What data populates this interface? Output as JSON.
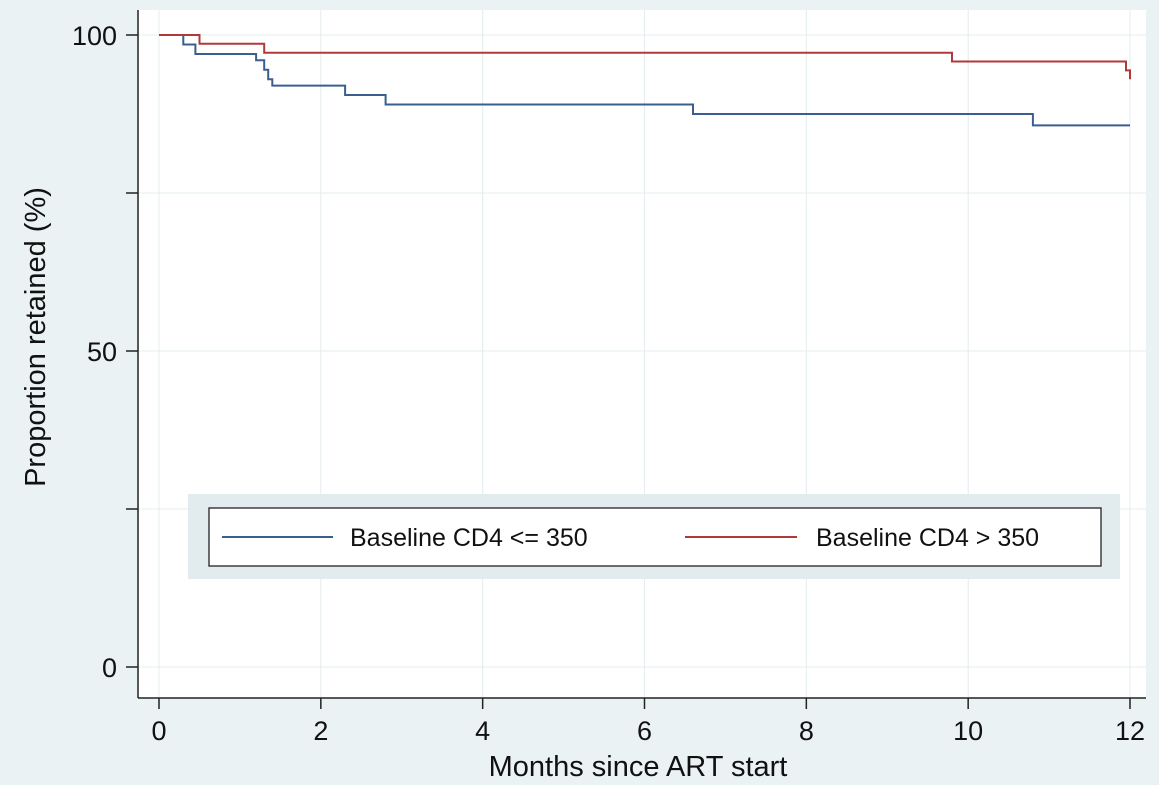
{
  "colors": {
    "outer_background": "#eaf2f3",
    "plot_background": "#ffffff",
    "gridline": "#e3ecee",
    "axis": "#222222",
    "legend_band": "#e2ecee"
  },
  "chart_data": {
    "type": "line",
    "title": "",
    "xlabel": "Months since ART start",
    "ylabel": "Proportion retained (%)",
    "xlim": [
      0,
      12
    ],
    "ylim": [
      0,
      100
    ],
    "x_ticks": [
      0,
      2,
      4,
      6,
      8,
      10,
      12
    ],
    "x_tick_labels": [
      "0",
      "2",
      "4",
      "6",
      "8",
      "10",
      "12"
    ],
    "y_ticks": [
      0,
      25,
      50,
      75,
      100
    ],
    "y_tick_labels": [
      "0",
      "",
      "50",
      "",
      "100"
    ],
    "grid": true,
    "legend_position": "bottom-center",
    "step": true,
    "series": [
      {
        "name": "Baseline CD4 <= 350",
        "color": "#3a5f8f",
        "x": [
          0,
          0.3,
          0.45,
          1.2,
          1.3,
          1.35,
          1.4,
          2.3,
          2.8,
          6.6,
          10.8,
          12
        ],
        "y": [
          100,
          98.5,
          97,
          96,
          94.5,
          93,
          92,
          90.5,
          89,
          87.5,
          85.7,
          85.7
        ]
      },
      {
        "name": "Baseline CD4 > 350",
        "color": "#b03a3a",
        "x": [
          0,
          0.5,
          1.3,
          9.8,
          11.95,
          12
        ],
        "y": [
          100,
          98.6,
          97.2,
          95.8,
          94.4,
          93.0
        ]
      }
    ]
  }
}
